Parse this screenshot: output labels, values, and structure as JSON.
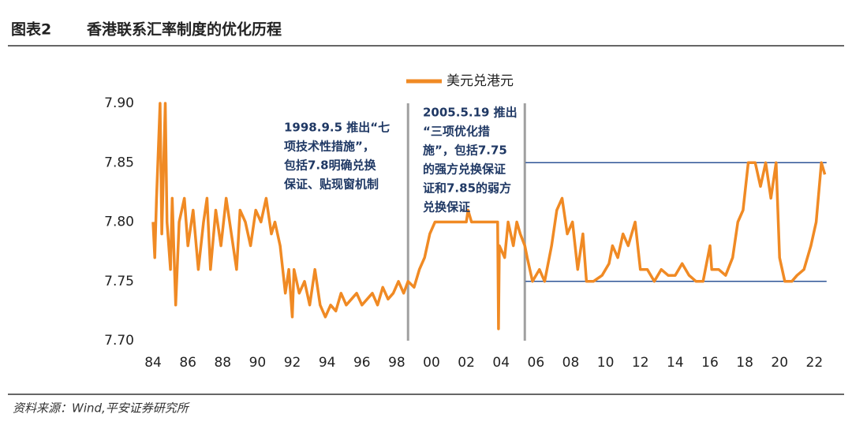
{
  "header": {
    "label": "图表2",
    "title": "香港联系汇率制度的优化历程"
  },
  "footer": {
    "source": "资料来源：Wind,平安证券研究所"
  },
  "chart_data": {
    "type": "line",
    "xlim": [
      1983.5,
      2022.8
    ],
    "ylim": [
      7.7,
      7.9
    ],
    "xticks": [
      {
        "value": 1984,
        "label": "84"
      },
      {
        "value": 1986,
        "label": "86"
      },
      {
        "value": 1988,
        "label": "88"
      },
      {
        "value": 1990,
        "label": "90"
      },
      {
        "value": 1992,
        "label": "92"
      },
      {
        "value": 1994,
        "label": "94"
      },
      {
        "value": 1996,
        "label": "96"
      },
      {
        "value": 1998,
        "label": "98"
      },
      {
        "value": 2000,
        "label": "00"
      },
      {
        "value": 2002,
        "label": "02"
      },
      {
        "value": 2004,
        "label": "04"
      },
      {
        "value": 2006,
        "label": "06"
      },
      {
        "value": 2008,
        "label": "08"
      },
      {
        "value": 2010,
        "label": "10"
      },
      {
        "value": 2012,
        "label": "12"
      },
      {
        "value": 2014,
        "label": "14"
      },
      {
        "value": 2016,
        "label": "16"
      },
      {
        "value": 2018,
        "label": "18"
      },
      {
        "value": 2020,
        "label": "20"
      },
      {
        "value": 2022,
        "label": "22"
      }
    ],
    "yticks": [
      {
        "value": 7.7,
        "label": "7.70"
      },
      7.75,
      {
        "value": 7.8,
        "label": "7.80"
      },
      7.85,
      {
        "value": 7.9,
        "label": "7.90"
      }
    ],
    "vlines": [
      1998.65,
      2005.36
    ],
    "vline_color": "#a0a0a0",
    "hlines": [
      7.85,
      7.75
    ],
    "hline_x": [
      2005.4,
      2022.7
    ],
    "hline_color": "#2f5597",
    "annotations": [
      {
        "lines": [
          "1998.9.5 推出“七",
          "项技术性措施”，",
          "包括7.8明确兑换",
          "保证、贴现窗机制"
        ]
      },
      {
        "lines": [
          "2005.5.19 推出",
          "“三项优化措",
          "施”，包括7.75",
          "的强方兑换保证",
          "证和7.85的弱方",
          "兑换保证"
        ]
      }
    ],
    "series": [
      {
        "name": "美元兑港元",
        "color": "#f08a24",
        "x": [
          1984.0,
          1984.1,
          1984.2,
          1984.4,
          1984.5,
          1984.7,
          1984.8,
          1985.0,
          1985.1,
          1985.3,
          1985.5,
          1985.8,
          1986.0,
          1986.3,
          1986.6,
          1986.9,
          1987.1,
          1987.3,
          1987.6,
          1987.9,
          1988.2,
          1988.5,
          1988.8,
          1989.0,
          1989.3,
          1989.6,
          1989.9,
          1990.2,
          1990.5,
          1990.8,
          1991.0,
          1991.3,
          1991.6,
          1991.8,
          1992.0,
          1992.1,
          1992.4,
          1992.7,
          1993.0,
          1993.3,
          1993.6,
          1993.9,
          1994.2,
          1994.5,
          1994.8,
          1995.1,
          1995.4,
          1995.7,
          1996.0,
          1996.3,
          1996.6,
          1996.9,
          1997.2,
          1997.5,
          1997.8,
          1998.1,
          1998.4,
          1998.65,
          1999.0,
          1999.3,
          1999.6,
          1999.9,
          2000.2,
          2000.6,
          2001.0,
          2001.5,
          2002.0,
          2002.1,
          2002.3,
          2003.0,
          2003.5,
          2003.8,
          2003.85,
          2003.9,
          2004.2,
          2004.4,
          2004.7,
          2004.9,
          2005.1,
          2005.36,
          2005.5,
          2005.8,
          2006.2,
          2006.5,
          2006.9,
          2007.2,
          2007.5,
          2007.8,
          2008.1,
          2008.4,
          2008.7,
          2008.9,
          2009.3,
          2009.8,
          2010.2,
          2010.4,
          2010.7,
          2011.0,
          2011.3,
          2011.7,
          2012.0,
          2012.4,
          2012.8,
          2013.2,
          2013.6,
          2014.0,
          2014.4,
          2014.8,
          2015.2,
          2015.6,
          2016.0,
          2016.1,
          2016.5,
          2016.9,
          2017.3,
          2017.6,
          2017.9,
          2018.2,
          2018.6,
          2018.9,
          2019.2,
          2019.5,
          2019.8,
          2020.0,
          2020.3,
          2020.7,
          2021.0,
          2021.4,
          2021.8,
          2022.1,
          2022.4,
          2022.6
        ],
        "values": [
          7.8,
          7.77,
          7.82,
          7.9,
          7.79,
          7.9,
          7.8,
          7.76,
          7.82,
          7.73,
          7.8,
          7.82,
          7.78,
          7.81,
          7.76,
          7.8,
          7.82,
          7.76,
          7.81,
          7.78,
          7.82,
          7.79,
          7.76,
          7.81,
          7.8,
          7.78,
          7.81,
          7.8,
          7.82,
          7.79,
          7.8,
          7.78,
          7.74,
          7.76,
          7.72,
          7.76,
          7.74,
          7.75,
          7.73,
          7.76,
          7.73,
          7.72,
          7.73,
          7.725,
          7.74,
          7.73,
          7.735,
          7.74,
          7.73,
          7.735,
          7.74,
          7.73,
          7.745,
          7.735,
          7.74,
          7.75,
          7.74,
          7.75,
          7.745,
          7.76,
          7.77,
          7.79,
          7.8,
          7.8,
          7.8,
          7.8,
          7.8,
          7.81,
          7.8,
          7.8,
          7.8,
          7.8,
          7.71,
          7.78,
          7.77,
          7.8,
          7.78,
          7.8,
          7.79,
          7.78,
          7.77,
          7.75,
          7.76,
          7.75,
          7.78,
          7.81,
          7.82,
          7.79,
          7.8,
          7.76,
          7.79,
          7.75,
          7.75,
          7.755,
          7.765,
          7.78,
          7.77,
          7.79,
          7.78,
          7.8,
          7.76,
          7.76,
          7.75,
          7.76,
          7.755,
          7.755,
          7.765,
          7.755,
          7.75,
          7.75,
          7.78,
          7.76,
          7.76,
          7.755,
          7.77,
          7.8,
          7.81,
          7.85,
          7.85,
          7.83,
          7.85,
          7.82,
          7.85,
          7.77,
          7.75,
          7.75,
          7.755,
          7.76,
          7.78,
          7.8,
          7.85,
          7.84
        ]
      }
    ]
  }
}
